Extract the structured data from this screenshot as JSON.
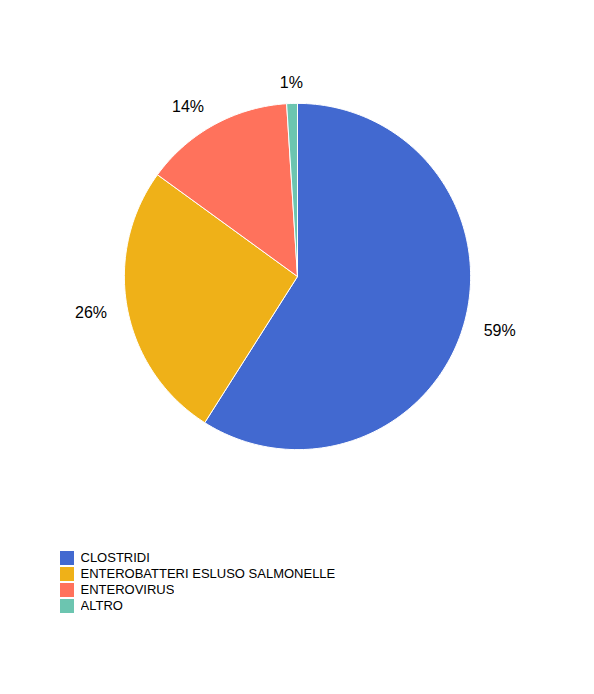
{
  "chart_data": {
    "type": "pie",
    "categories": [
      "CLOSTRIDI",
      "ENTEROBATTERI ESLUSO SALMONELLE",
      "ENTEROVIRUS",
      "ALTRO"
    ],
    "values": [
      59,
      26,
      14,
      1
    ],
    "value_labels": [
      "59%",
      "26%",
      "14%",
      "1%"
    ],
    "data_labels": true,
    "legend": "bottom"
  }
}
